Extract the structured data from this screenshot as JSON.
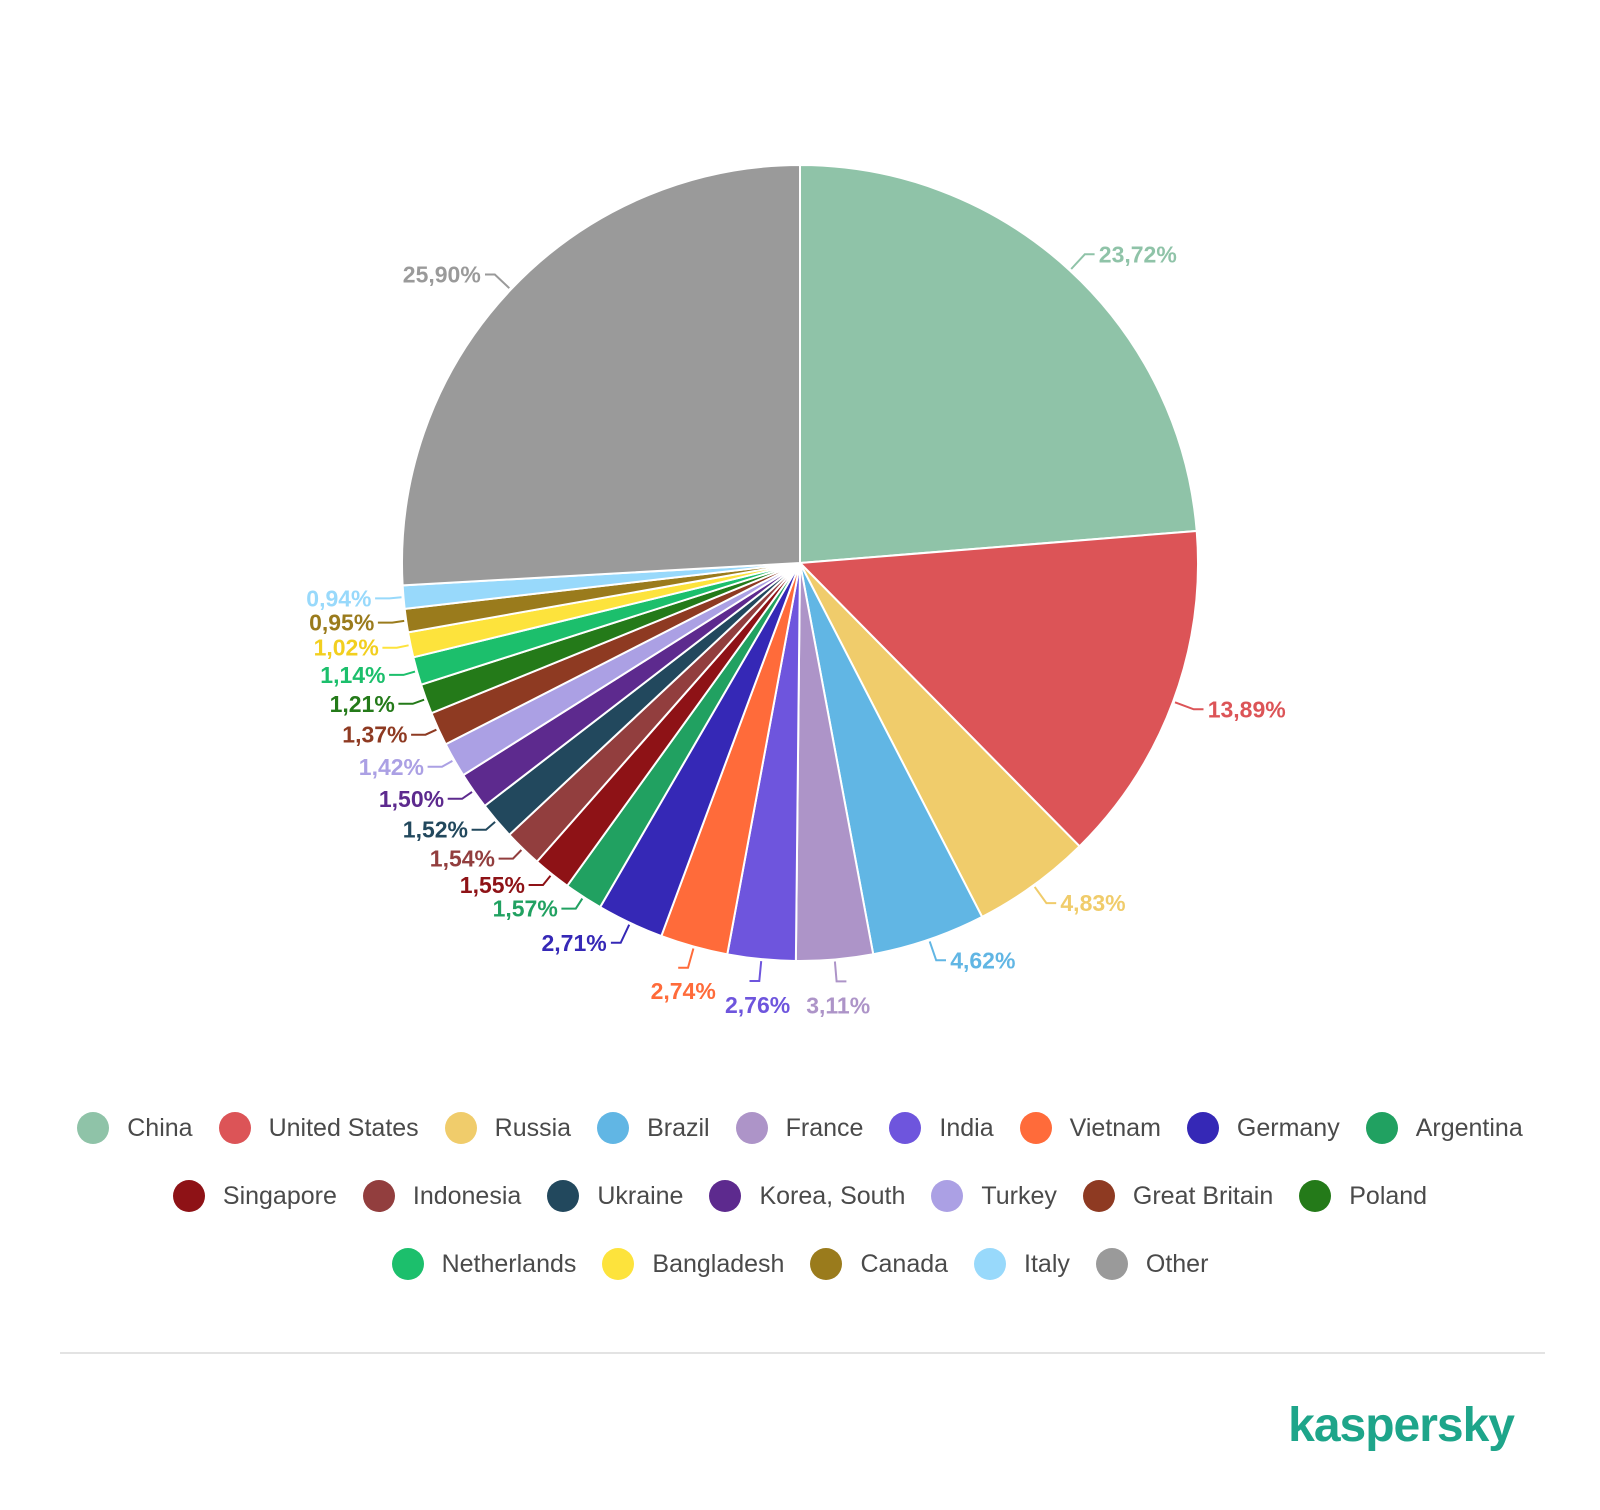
{
  "chart_data": {
    "type": "pie",
    "slices": [
      {
        "name": "China",
        "value": 23.72,
        "label": "23,72%",
        "color": "#8fc3a8"
      },
      {
        "name": "United States",
        "value": 13.89,
        "label": "13,89%",
        "color": "#dc5457"
      },
      {
        "name": "Russia",
        "value": 4.83,
        "label": "4,83%",
        "color": "#f0cc6b"
      },
      {
        "name": "Brazil",
        "value": 4.62,
        "label": "4,62%",
        "color": "#61b6e4"
      },
      {
        "name": "France",
        "value": 3.11,
        "label": "3,11%",
        "color": "#ad94c8"
      },
      {
        "name": "India",
        "value": 2.76,
        "label": "2,76%",
        "color": "#6e55dd"
      },
      {
        "name": "Vietnam",
        "value": 2.74,
        "label": "2,74%",
        "color": "#ff6b3a"
      },
      {
        "name": "Germany",
        "value": 2.71,
        "label": "2,71%",
        "color": "#3528b6"
      },
      {
        "name": "Argentina",
        "value": 1.57,
        "label": "1,57%",
        "color": "#21a161"
      },
      {
        "name": "Singapore",
        "value": 1.55,
        "label": "1,55%",
        "color": "#8e1216"
      },
      {
        "name": "Indonesia",
        "value": 1.54,
        "label": "1,54%",
        "color": "#923e3e"
      },
      {
        "name": "Ukraine",
        "value": 1.52,
        "label": "1,52%",
        "color": "#22485d"
      },
      {
        "name": "Korea, South",
        "value": 1.5,
        "label": "1,50%",
        "color": "#5d2a8e"
      },
      {
        "name": "Turkey",
        "value": 1.42,
        "label": "1,42%",
        "color": "#aba0e4"
      },
      {
        "name": "Great Britain",
        "value": 1.37,
        "label": "1,37%",
        "color": "#8e3a22"
      },
      {
        "name": "Poland",
        "value": 1.21,
        "label": "1,21%",
        "color": "#247a19"
      },
      {
        "name": "Netherlands",
        "value": 1.14,
        "label": "1,14%",
        "color": "#1cbf6c"
      },
      {
        "name": "Bangladesh",
        "value": 1.02,
        "label": "1,02%",
        "color": "#fde33c"
      },
      {
        "name": "Canada",
        "value": 0.95,
        "label": "0,95%",
        "color": "#9a7b1c"
      },
      {
        "name": "Italy",
        "value": 0.94,
        "label": "0,94%",
        "color": "#98d9fb"
      },
      {
        "name": "Other",
        "value": 25.9,
        "label": "25,90%",
        "color": "#9a9a9a"
      }
    ],
    "legend_position": "bottom"
  },
  "brand": {
    "name": "kaspersky"
  }
}
